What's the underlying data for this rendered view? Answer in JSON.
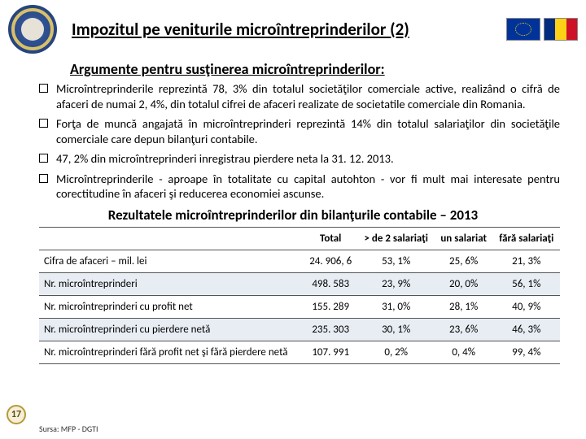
{
  "header": {
    "title": "Impozitul pe veniturile microîntreprinderilor (2)"
  },
  "subtitle": "Argumente pentru susţinerea microîntreprinderilor:",
  "bullets": [
    "Microîntreprinderile reprezintă 78, 3% din totalul societăţilor comerciale active, realizând o cifră de afaceri de numai 2, 4%, din totalul cifrei de afaceri realizate de societatile comerciale din Romania.",
    "Forţa de muncă angajată în microîntreprinderi reprezintă 14% din totalul salariaţilor din societăţile comerciale care depun bilanţuri contabile.",
    "47, 2% din microîntreprinderi inregistrau pierdere neta la 31. 12. 2013.",
    "Microîntreprinderile - aproape în totalitate cu capital autohton - vor fi mult mai interesate pentru corectitudine în afaceri şi reducerea economiei ascunse."
  ],
  "table": {
    "title": "Rezultatele microîntreprinderilor din bilanţurile contabile – 2013",
    "columns": [
      "",
      "Total",
      "> de 2 salariaţi",
      "un salariat",
      "fără salariaţi"
    ],
    "rows": [
      {
        "label": "Cifra de afaceri – mil. lei",
        "vals": [
          "24. 906, 6",
          "53, 1%",
          "25, 6%",
          "21, 3%"
        ],
        "alt": false
      },
      {
        "label": "Nr. microîntreprinderi",
        "vals": [
          "498. 583",
          "23, 9%",
          "20, 0%",
          "56, 1%"
        ],
        "alt": true
      },
      {
        "label": "Nr. microîntreprinderi cu profit net",
        "vals": [
          "155. 289",
          "31, 0%",
          "28, 1%",
          "40, 9%"
        ],
        "alt": false
      },
      {
        "label": "Nr. microîntreprinderi cu pierdere netă",
        "vals": [
          "235. 303",
          "30, 1%",
          "23, 6%",
          "46, 3%"
        ],
        "alt": true
      },
      {
        "label": "Nr. microîntreprinderi fără profit net şi fără pierdere netă",
        "vals": [
          "107. 991",
          "0, 2%",
          "0, 4%",
          "99, 4%"
        ],
        "alt": false
      }
    ]
  },
  "page_number": "17",
  "source": "Sursa: MFP - DGTI"
}
